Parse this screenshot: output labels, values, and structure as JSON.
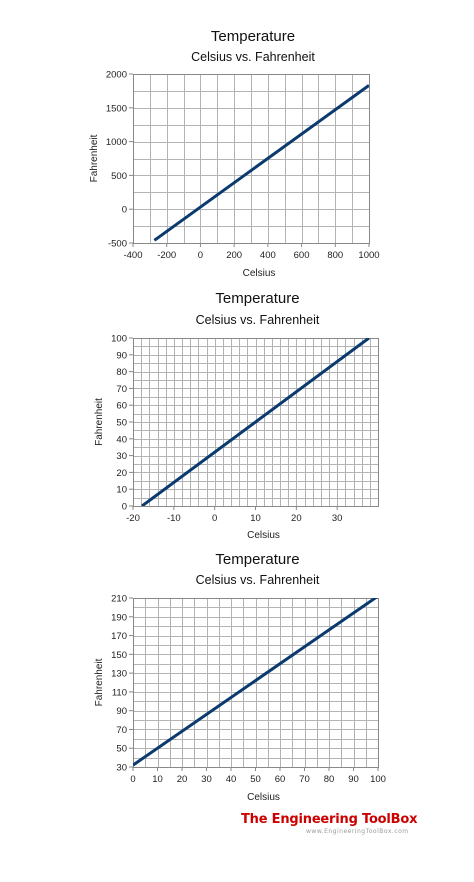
{
  "chart_data": [
    {
      "type": "line",
      "title": "Temperature",
      "subtitle": "Celsius vs. Fahrenheit",
      "xlabel": "Celsius",
      "ylabel": "Fahrenheit",
      "xlim": [
        -400,
        1000
      ],
      "ylim": [
        -500,
        2000
      ],
      "xticks": [
        -400,
        -200,
        0,
        200,
        400,
        600,
        800,
        1000
      ],
      "yticks": [
        -500,
        0,
        500,
        1000,
        1500,
        2000
      ],
      "xgrid_step": 100,
      "ygrid_step": 250,
      "grid": true,
      "series": [
        {
          "color": "#0a3a6e",
          "x": [
            -273,
            1000
          ],
          "y": [
            -459.4,
            1832
          ]
        }
      ]
    },
    {
      "type": "line",
      "title": "Temperature",
      "subtitle": "Celsius vs. Fahrenheit",
      "xlabel": "Celsius",
      "ylabel": "Fahrenheit",
      "xlim": [
        -20,
        40
      ],
      "ylim": [
        0,
        100
      ],
      "xticks": [
        -20,
        -10,
        0,
        10,
        20,
        30
      ],
      "yticks": [
        0,
        10,
        20,
        30,
        40,
        50,
        60,
        70,
        80,
        90,
        100
      ],
      "xgrid_step": 2,
      "ygrid_step": 5,
      "grid": true,
      "series": [
        {
          "color": "#0a3a6e",
          "x": [
            -17.8,
            37.8
          ],
          "y": [
            0,
            100
          ]
        }
      ]
    },
    {
      "type": "line",
      "title": "Temperature",
      "subtitle": "Celsius vs. Fahrenheit",
      "xlabel": "Celsius",
      "ylabel": "Fahrenheit",
      "xlim": [
        0,
        100
      ],
      "ylim": [
        30,
        210
      ],
      "xticks": [
        0,
        10,
        20,
        30,
        40,
        50,
        60,
        70,
        80,
        90,
        100
      ],
      "yticks": [
        30,
        50,
        70,
        90,
        110,
        130,
        150,
        170,
        190,
        210
      ],
      "xgrid_step": 5,
      "ygrid_step": 10,
      "grid": true,
      "series": [
        {
          "color": "#0a3a6e",
          "x": [
            0,
            100
          ],
          "y": [
            32,
            212
          ]
        }
      ]
    }
  ],
  "branding": {
    "logo_text": "The Engineering ToolBox",
    "url_text": "www.EngineeringToolBox.com"
  }
}
